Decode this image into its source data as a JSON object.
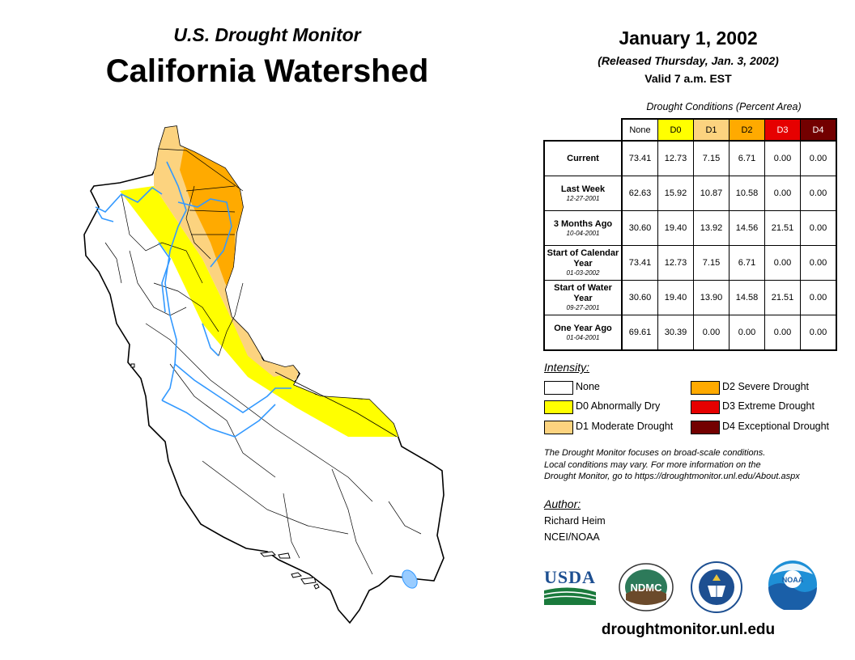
{
  "header": {
    "subtitle": "U.S. Drought Monitor",
    "title": "California Watershed"
  },
  "date_block": {
    "date": "January 1, 2002",
    "released": "(Released Thursday, Jan. 3, 2002)",
    "valid": "Valid 7 a.m. EST"
  },
  "conditions_table": {
    "caption": "Drought Conditions (Percent Area)",
    "columns": [
      {
        "label": "None",
        "color": "#ffffff",
        "text_color": "#000000"
      },
      {
        "label": "D0",
        "color": "#ffff00",
        "text_color": "#000000"
      },
      {
        "label": "D1",
        "color": "#fcd37f",
        "text_color": "#000000"
      },
      {
        "label": "D2",
        "color": "#ffaa00",
        "text_color": "#000000"
      },
      {
        "label": "D3",
        "color": "#e60000",
        "text_color": "#ffffff"
      },
      {
        "label": "D4",
        "color": "#730000",
        "text_color": "#ffffff"
      }
    ],
    "rows": [
      {
        "label": "Current",
        "date": "",
        "values": [
          "73.41",
          "12.73",
          "7.15",
          "6.71",
          "0.00",
          "0.00"
        ]
      },
      {
        "label": "Last Week",
        "date": "12-27-2001",
        "values": [
          "62.63",
          "15.92",
          "10.87",
          "10.58",
          "0.00",
          "0.00"
        ]
      },
      {
        "label": "3 Months Ago",
        "date": "10-04-2001",
        "values": [
          "30.60",
          "19.40",
          "13.92",
          "14.56",
          "21.51",
          "0.00"
        ]
      },
      {
        "label": "Start of Calendar Year",
        "date": "01-03-2002",
        "values": [
          "73.41",
          "12.73",
          "7.15",
          "6.71",
          "0.00",
          "0.00"
        ]
      },
      {
        "label": "Start of Water Year",
        "date": "09-27-2001",
        "values": [
          "30.60",
          "19.40",
          "13.90",
          "14.58",
          "21.51",
          "0.00"
        ]
      },
      {
        "label": "One Year Ago",
        "date": "01-04-2001",
        "values": [
          "69.61",
          "30.39",
          "0.00",
          "0.00",
          "0.00",
          "0.00"
        ]
      }
    ]
  },
  "legend": {
    "title": "Intensity:",
    "items": [
      {
        "label": "None",
        "color": "#ffffff"
      },
      {
        "label": "D0 Abnormally Dry",
        "color": "#ffff00"
      },
      {
        "label": "D1 Moderate Drought",
        "color": "#fcd37f"
      },
      {
        "label": "D2 Severe Drought",
        "color": "#ffaa00"
      },
      {
        "label": "D3 Extreme Drought",
        "color": "#e60000"
      },
      {
        "label": "D4 Exceptional Drought",
        "color": "#730000"
      }
    ]
  },
  "note": {
    "line1": "The Drought Monitor focuses on broad-scale conditions.",
    "line2": "Local conditions may vary. For more information on the",
    "line3": "Drought Monitor, go to https://droughtmonitor.unl.edu/About.aspx"
  },
  "author": {
    "title": "Author:",
    "name": "Richard Heim",
    "org": "NCEI/NOAA"
  },
  "logos": {
    "usda": "USDA",
    "ndmc": "NDMC",
    "noaa": "NOAA"
  },
  "footer": {
    "url": "droughtmonitor.unl.edu"
  },
  "map_colors": {
    "d0": "#ffff00",
    "d1": "#fcd37f",
    "d2": "#ffaa00",
    "river": "#3399ff",
    "lake": "#99ccff"
  }
}
